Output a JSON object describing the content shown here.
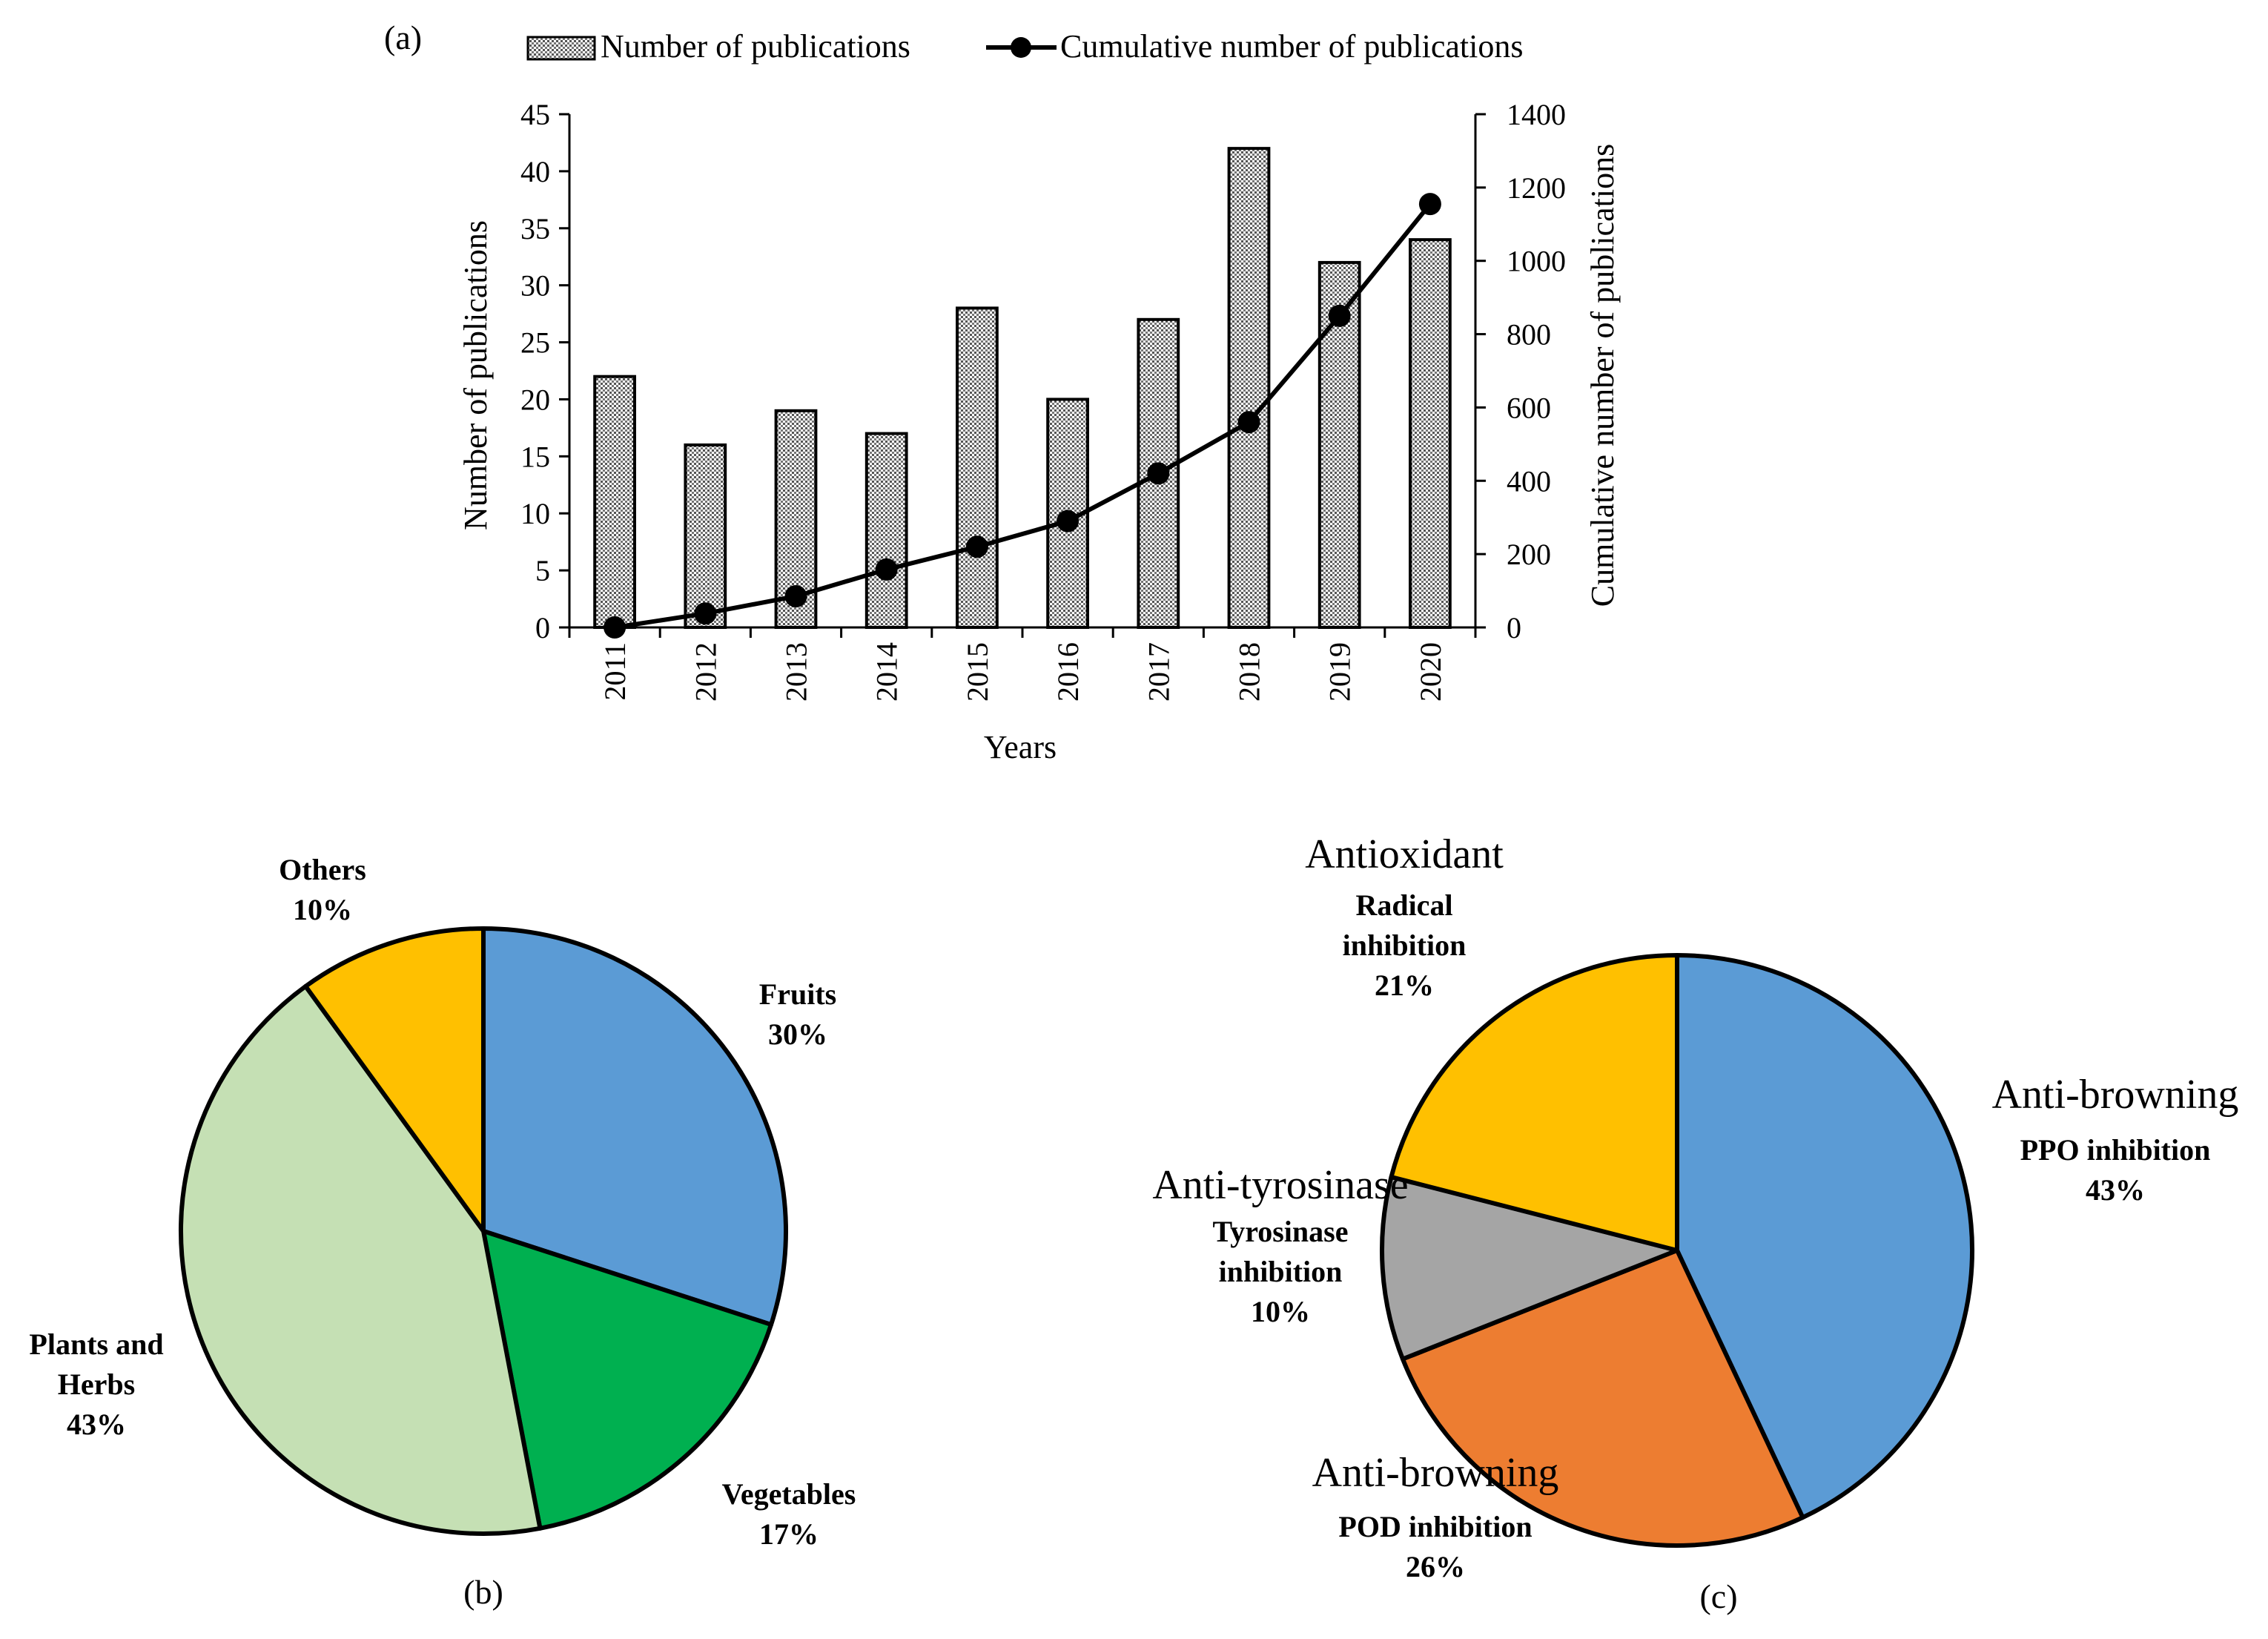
{
  "chart_data": [
    {
      "type": "bar+line",
      "panel_label": "(a)",
      "categories": [
        "2011",
        "2012",
        "2013",
        "2014",
        "2015",
        "2016",
        "2017",
        "2018",
        "2019",
        "2020"
      ],
      "series": [
        {
          "name": "Number of publications",
          "kind": "bar",
          "axis": "left",
          "values": [
            22,
            16,
            19,
            17,
            28,
            20,
            27,
            42,
            32,
            34
          ]
        },
        {
          "name": "Cumulative number of publications",
          "kind": "line",
          "axis": "right",
          "values": [
            0,
            38,
            85,
            158,
            220,
            290,
            420,
            560,
            850,
            1155
          ]
        }
      ],
      "xlabel": "Years",
      "ylabel": "Number of publications",
      "y2label": "Cumulative number of publications",
      "ylim": [
        0,
        45
      ],
      "y_ticks": [
        0,
        5,
        10,
        15,
        20,
        25,
        30,
        35,
        40,
        45
      ],
      "y2lim": [
        0,
        1400
      ],
      "y2_ticks": [
        0,
        200,
        400,
        600,
        800,
        1000,
        1200,
        1400
      ],
      "legend_position": "top"
    },
    {
      "type": "pie",
      "panel_label": "(b)",
      "slices": [
        {
          "name_lines": [
            "Fruits"
          ],
          "value": 30,
          "label": "30%",
          "color": "#5b9bd5"
        },
        {
          "name_lines": [
            "Vegetables"
          ],
          "value": 17,
          "label": "17%",
          "color": "#00b050"
        },
        {
          "name_lines": [
            "Plants and",
            "Herbs"
          ],
          "value": 43,
          "label": "43%",
          "color": "#c5e0b4"
        },
        {
          "name_lines": [
            "Others"
          ],
          "value": 10,
          "label": "10%",
          "color": "#ffc000"
        }
      ]
    },
    {
      "type": "pie",
      "panel_label": "(c)",
      "slices": [
        {
          "category": "Anti-browning",
          "name_lines": [
            "PPO inhibition"
          ],
          "value": 43,
          "label": "43%",
          "color": "#5b9bd5"
        },
        {
          "category": "Anti-browning",
          "name_lines": [
            "POD inhibition"
          ],
          "value": 26,
          "label": "26%",
          "color": "#ed7d31"
        },
        {
          "category": "Anti-tyrosinase",
          "name_lines": [
            "Tyrosinase",
            "inhibition"
          ],
          "value": 10,
          "label": "10%",
          "color": "#a5a5a5"
        },
        {
          "category": "Antioxidant",
          "name_lines": [
            "Radical",
            "inhibition"
          ],
          "value": 21,
          "label": "21%",
          "color": "#ffc000"
        }
      ]
    }
  ]
}
